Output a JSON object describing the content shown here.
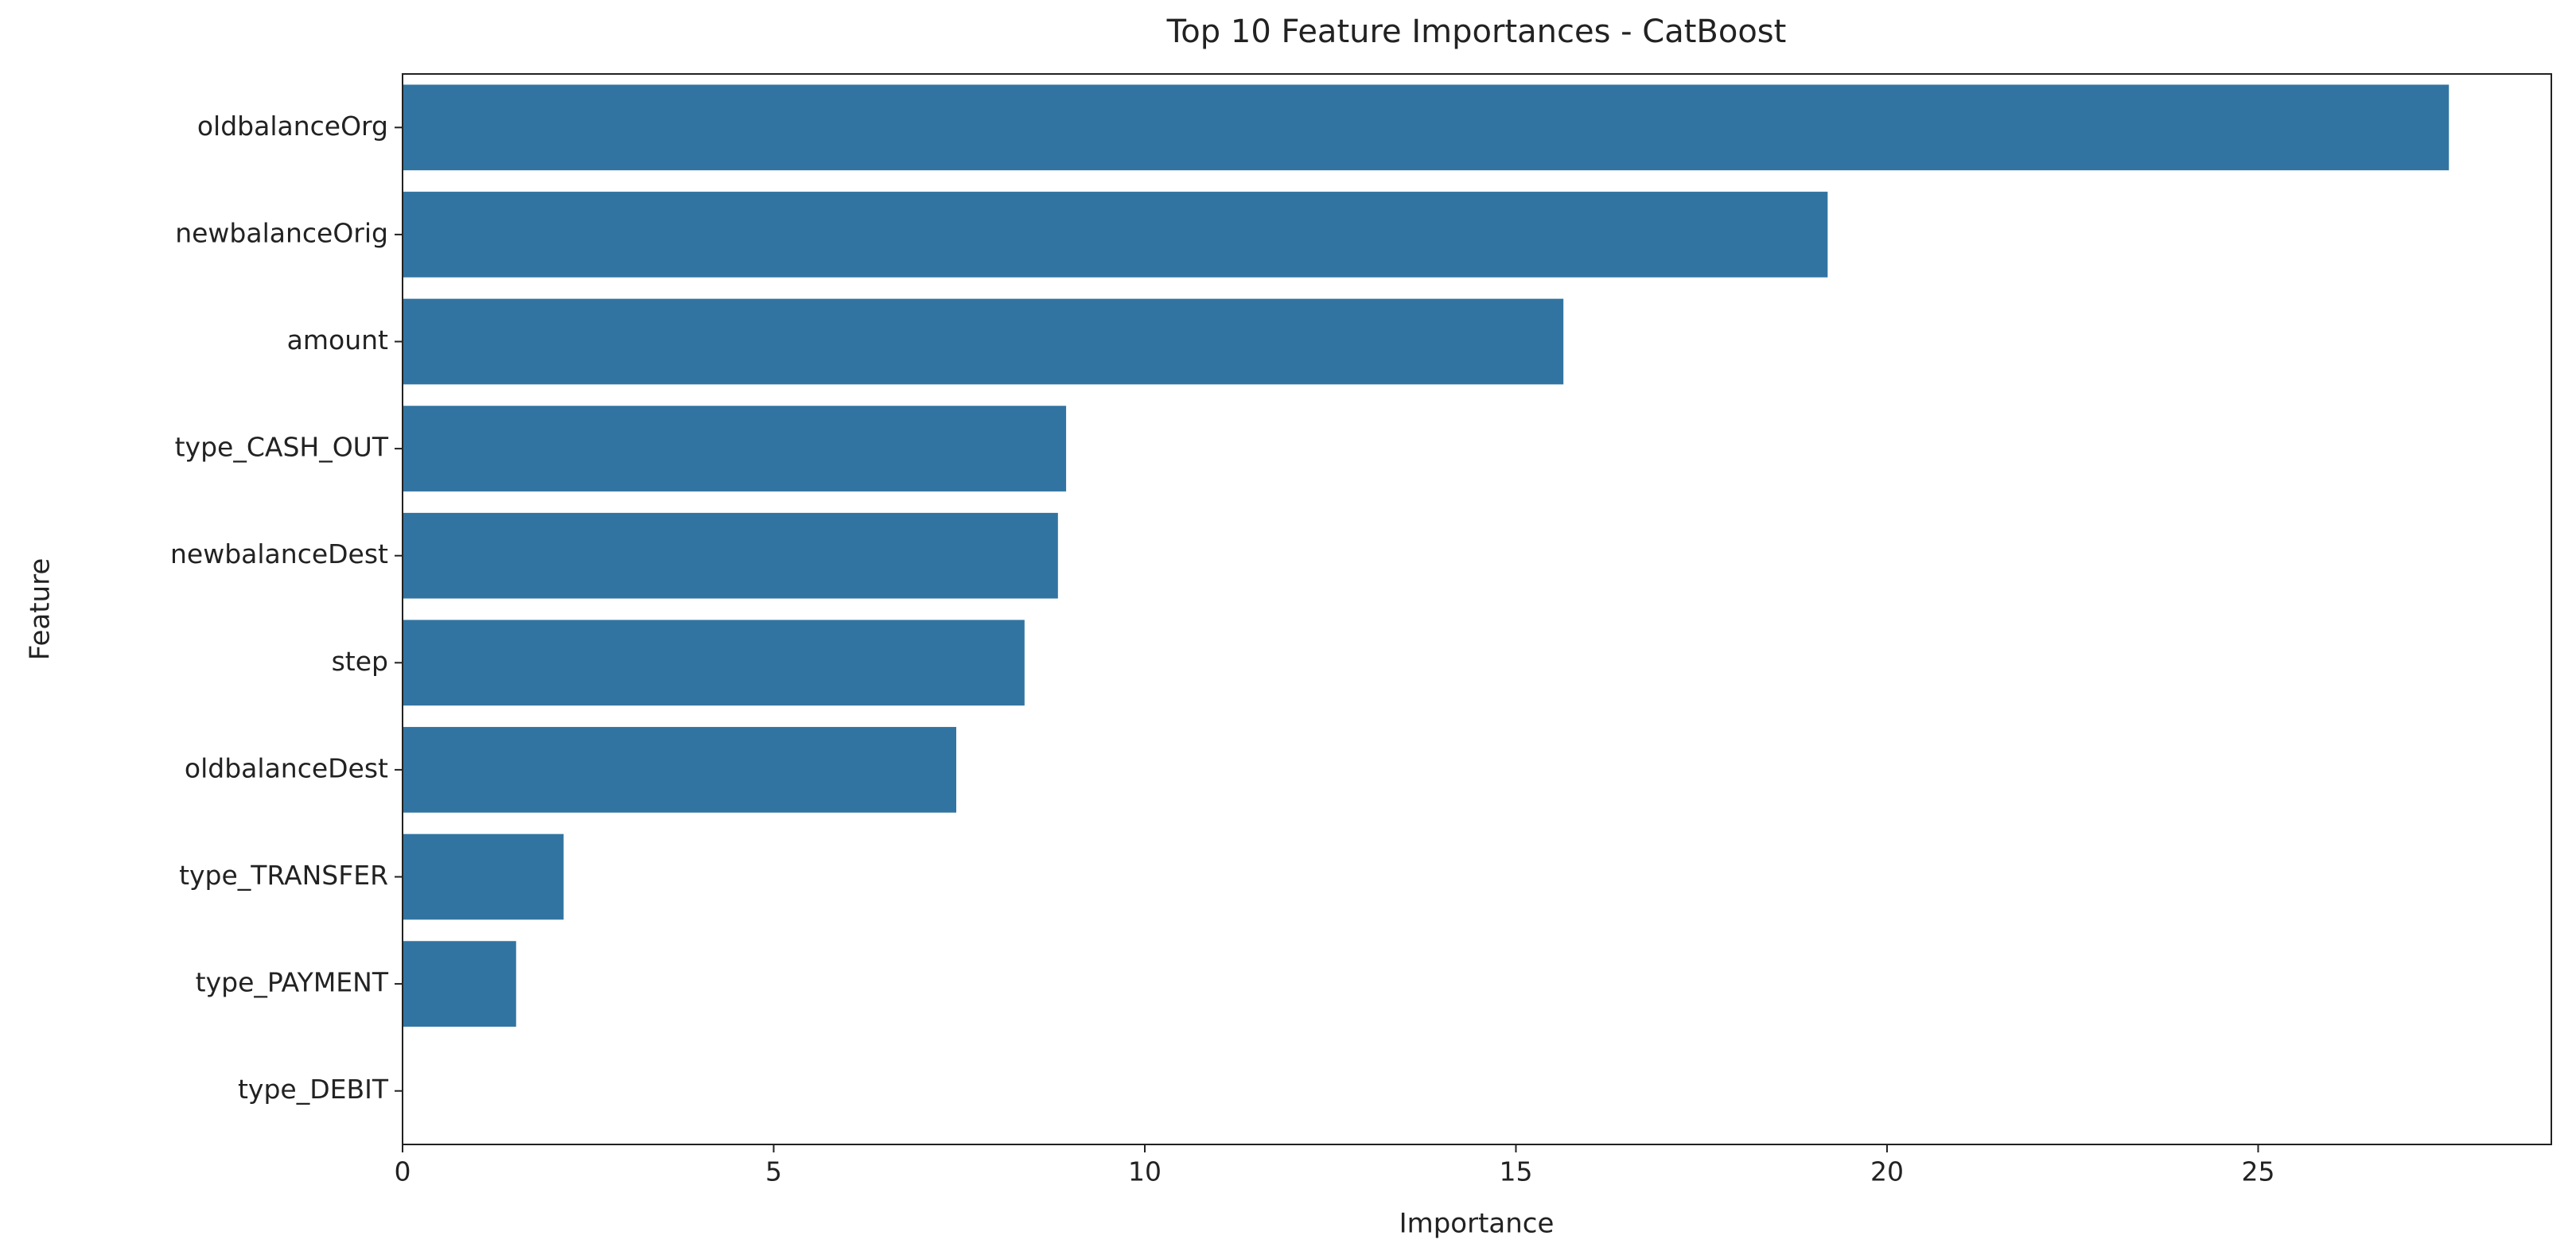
{
  "chart_data": {
    "type": "bar",
    "orientation": "horizontal",
    "title": "Top 10 Feature Importances - CatBoost",
    "x_label": "Importance",
    "y_label": "Feature",
    "categories": [
      "oldbalanceOrg",
      "newbalanceOrig",
      "amount",
      "type_CASH_OUT",
      "newbalanceDest",
      "step",
      "oldbalanceDest",
      "type_TRANSFER",
      "type_PAYMENT",
      "type_DEBIT"
    ],
    "values": [
      27.57,
      19.2,
      15.64,
      8.94,
      8.83,
      8.38,
      7.46,
      2.17,
      1.53,
      0
    ],
    "color": "#3274a1",
    "xlim": [
      0,
      28.95
    ],
    "xticks": [
      0,
      5,
      10,
      15,
      20,
      25
    ],
    "grid": false
  }
}
